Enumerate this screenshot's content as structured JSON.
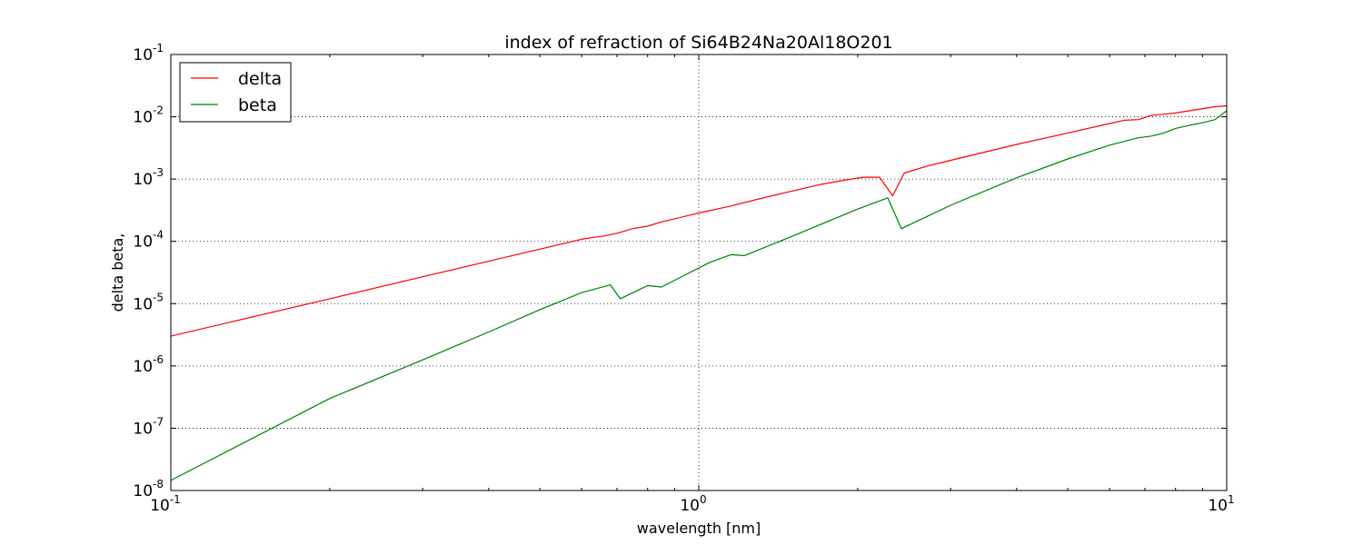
{
  "chart_data": {
    "type": "line",
    "title": "index of refraction of Si64B24Na20Al18O201",
    "xlabel": "wavelength [nm]",
    "ylabel": "delta beta,",
    "x_scale": "log",
    "y_scale": "log",
    "xlim": [
      0.1,
      10
    ],
    "ylim": [
      1e-08,
      0.1
    ],
    "grid": true,
    "legend_position": "top-left",
    "x_ticks": [
      {
        "value": 0.1,
        "mantissa": "10",
        "exp": "-1"
      },
      {
        "value": 1,
        "mantissa": "10",
        "exp": "0"
      },
      {
        "value": 10,
        "mantissa": "10",
        "exp": "1"
      }
    ],
    "y_ticks": [
      {
        "value": 1e-08,
        "mantissa": "10",
        "exp": "-8"
      },
      {
        "value": 1e-07,
        "mantissa": "10",
        "exp": "-7"
      },
      {
        "value": 1e-06,
        "mantissa": "10",
        "exp": "-6"
      },
      {
        "value": 1e-05,
        "mantissa": "10",
        "exp": "-5"
      },
      {
        "value": 0.0001,
        "mantissa": "10",
        "exp": "-4"
      },
      {
        "value": 0.001,
        "mantissa": "10",
        "exp": "-3"
      },
      {
        "value": 0.01,
        "mantissa": "10",
        "exp": "-2"
      },
      {
        "value": 0.1,
        "mantissa": "10",
        "exp": "-1"
      }
    ],
    "series": [
      {
        "name": "delta",
        "color": "#ff0000",
        "points": [
          [
            0.1,
            3e-06
          ],
          [
            0.2,
            1.2e-05
          ],
          [
            0.3,
            2.7e-05
          ],
          [
            0.4,
            4.8e-05
          ],
          [
            0.5,
            7.5e-05
          ],
          [
            0.6,
            0.000108
          ],
          [
            0.66,
            0.000122
          ],
          [
            0.7,
            0.000135
          ],
          [
            0.75,
            0.00016
          ],
          [
            0.8,
            0.000175
          ],
          [
            0.85,
            0.000205
          ],
          [
            0.9,
            0.00023
          ],
          [
            1.0,
            0.000285
          ],
          [
            1.1,
            0.00034
          ],
          [
            1.15,
            0.00037
          ],
          [
            1.3,
            0.00048
          ],
          [
            1.5,
            0.00064
          ],
          [
            1.7,
            0.00082
          ],
          [
            1.9,
            0.00097
          ],
          [
            2.05,
            0.00107
          ],
          [
            2.2,
            0.00107
          ],
          [
            2.33,
            0.00054
          ],
          [
            2.45,
            0.00125
          ],
          [
            2.7,
            0.0016
          ],
          [
            3.0,
            0.002
          ],
          [
            4.0,
            0.0036
          ],
          [
            5.0,
            0.0055
          ],
          [
            6.0,
            0.0078
          ],
          [
            6.4,
            0.0088
          ],
          [
            6.8,
            0.009
          ],
          [
            7.2,
            0.0105
          ],
          [
            7.6,
            0.011
          ],
          [
            8.0,
            0.0115
          ],
          [
            9.0,
            0.0135
          ],
          [
            9.5,
            0.0145
          ],
          [
            10.0,
            0.015
          ]
        ]
      },
      {
        "name": "beta",
        "color": "#008000",
        "points": [
          [
            0.1,
            1.45e-08
          ],
          [
            0.2,
            3e-07
          ],
          [
            0.3,
            1.25e-06
          ],
          [
            0.4,
            3.5e-06
          ],
          [
            0.5,
            8e-06
          ],
          [
            0.6,
            1.5e-05
          ],
          [
            0.68,
            2e-05
          ],
          [
            0.71,
            1.2e-05
          ],
          [
            0.8,
            1.95e-05
          ],
          [
            0.85,
            1.85e-05
          ],
          [
            0.95,
            3e-05
          ],
          [
            1.05,
            4.6e-05
          ],
          [
            1.15,
            6.1e-05
          ],
          [
            1.22,
            5.9e-05
          ],
          [
            1.5,
            0.00012
          ],
          [
            2.0,
            0.00033
          ],
          [
            2.28,
            0.0005
          ],
          [
            2.42,
            0.00016
          ],
          [
            3.0,
            0.00038
          ],
          [
            4.0,
            0.00105
          ],
          [
            5.0,
            0.0021
          ],
          [
            6.0,
            0.0035
          ],
          [
            6.8,
            0.0046
          ],
          [
            7.2,
            0.0049
          ],
          [
            7.6,
            0.0055
          ],
          [
            8.0,
            0.0065
          ],
          [
            8.5,
            0.0073
          ],
          [
            9.0,
            0.008
          ],
          [
            9.5,
            0.009
          ],
          [
            10.0,
            0.0125
          ]
        ]
      }
    ]
  }
}
